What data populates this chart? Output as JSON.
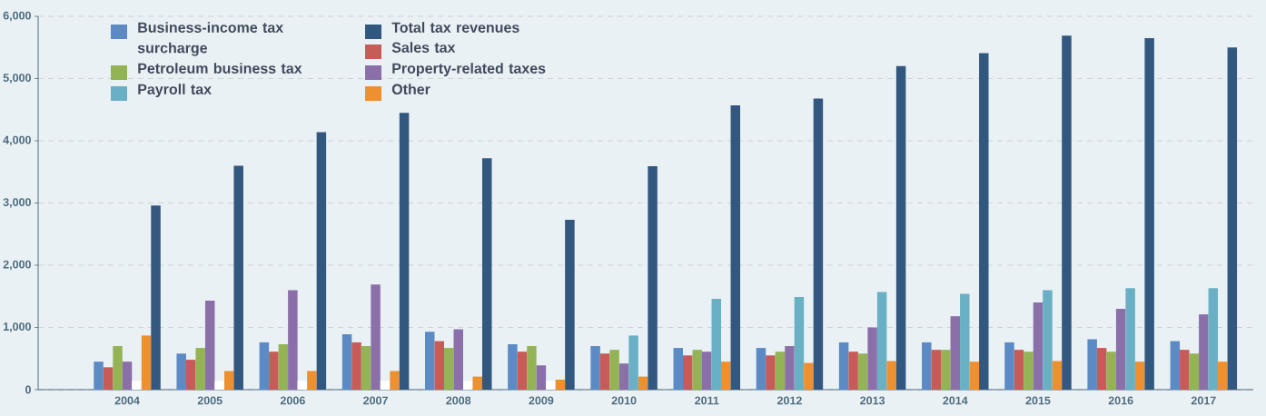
{
  "chart_data": {
    "type": "bar",
    "categories": [
      "2004",
      "2005",
      "2006",
      "2007",
      "2008",
      "2009",
      "2010",
      "2011",
      "2012",
      "2013",
      "2014",
      "2015",
      "2016",
      "2017"
    ],
    "series": [
      {
        "name": "Business-income tax surcharge",
        "color": "#5b8ac4",
        "values": [
          450,
          580,
          760,
          890,
          930,
          730,
          700,
          670,
          670,
          760,
          760,
          760,
          810,
          780
        ]
      },
      {
        "name": "Sales tax",
        "color": "#c65b57",
        "values": [
          360,
          480,
          610,
          760,
          780,
          610,
          580,
          550,
          550,
          610,
          640,
          640,
          670,
          640
        ]
      },
      {
        "name": "Petroleum business tax",
        "color": "#94b355",
        "values": [
          700,
          670,
          730,
          700,
          670,
          700,
          640,
          640,
          610,
          580,
          640,
          610,
          610,
          580
        ]
      },
      {
        "name": "Property-related taxes",
        "color": "#8b6fa9",
        "values": [
          450,
          1430,
          1600,
          1690,
          970,
          390,
          420,
          610,
          700,
          1000,
          1180,
          1400,
          1300,
          1210
        ]
      },
      {
        "name": "Payroll tax",
        "color": "#6ab0c4",
        "colors": [
          "#ffffff",
          "#ffffff",
          "#ffffff",
          "#ffffff",
          "#ffffff",
          "#ffffff",
          "#6ab0c4",
          "#6ab0c4",
          "#6ab0c4",
          "#6ab0c4",
          "#6ab0c4",
          "#6ab0c4",
          "#6ab0c4",
          "#6ab0c4"
        ],
        "values": [
          140,
          140,
          140,
          140,
          140,
          140,
          870,
          1460,
          1490,
          1570,
          1540,
          1600,
          1630,
          1630
        ]
      },
      {
        "name": "Other",
        "color": "#ee8f30",
        "values": [
          870,
          300,
          300,
          300,
          210,
          160,
          210,
          450,
          430,
          460,
          450,
          460,
          450,
          450
        ]
      },
      {
        "name": "Total tax revenues",
        "color": "#33587f",
        "values": [
          2960,
          3600,
          4140,
          4450,
          3720,
          2730,
          3590,
          4570,
          4680,
          5200,
          5410,
          5690,
          5650,
          5500
        ]
      }
    ],
    "ylim": [
      0,
      6000
    ],
    "yticks": [
      0,
      {
        "value": 1000,
        "label": "1,000"
      },
      {
        "value": 2000,
        "label": "2,000"
      },
      {
        "value": 3000,
        "label": "3,000"
      },
      {
        "value": 4000,
        "label": "4,000"
      },
      {
        "value": 5000,
        "label": "5,000"
      },
      {
        "value": 6000,
        "label": "6,000"
      }
    ],
    "grid": "y",
    "legend": "top left"
  }
}
